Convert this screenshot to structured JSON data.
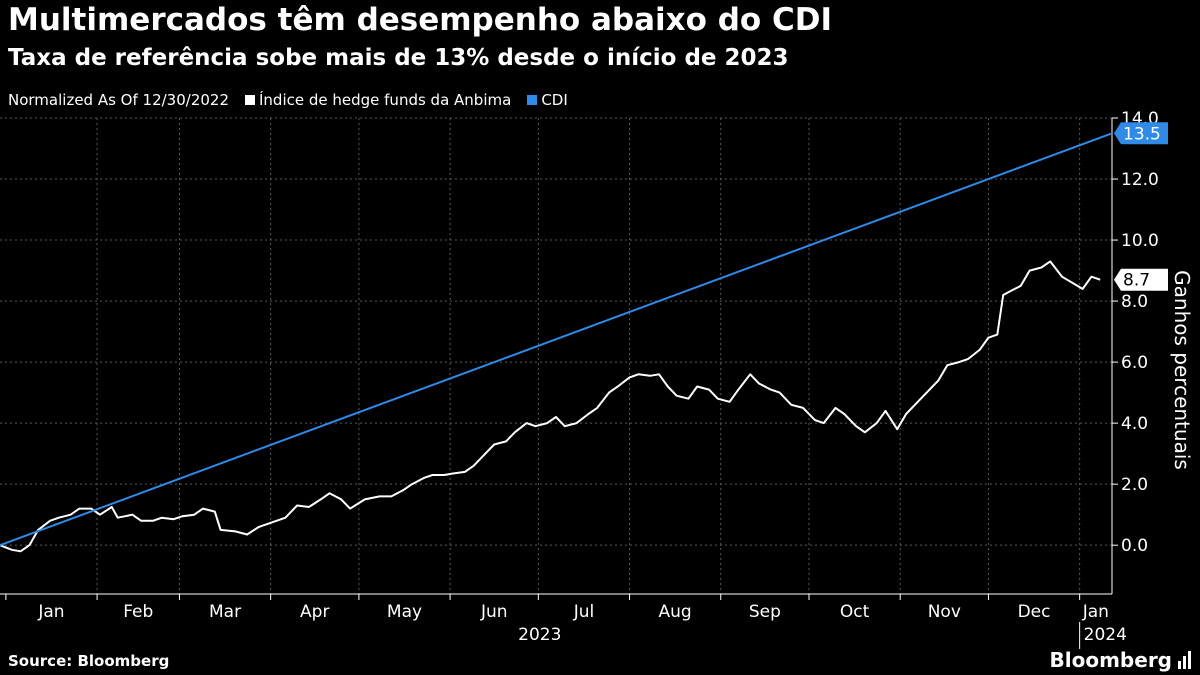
{
  "header": {
    "title": "Multimercados têm desempenho abaixo do CDI",
    "subtitle": "Taxa de referência sobe mais de 13% desde o início de 2023"
  },
  "legend": {
    "note": "Normalized As Of 12/30/2022",
    "items": [
      {
        "label": "Índice de hedge funds da Anbima",
        "color": "#ffffff"
      },
      {
        "label": "CDI",
        "color": "#2f8ae8"
      }
    ]
  },
  "footer": {
    "source": "Source: Bloomberg",
    "brand": "Bloomberg"
  },
  "chart_data": {
    "type": "line",
    "ylabel": "Ganhos percentuais",
    "ylim": [
      -1.6,
      14.0
    ],
    "yticks": [
      "0.0",
      "2.0",
      "4.0",
      "6.0",
      "8.0",
      "10.0",
      "12.0",
      "14.0"
    ],
    "grid": true,
    "x_start": "2022-12-30",
    "x_end": "2024-01-12",
    "x_month_labels": [
      "Jan",
      "Feb",
      "Mar",
      "Apr",
      "May",
      "Jun",
      "Jul",
      "Aug",
      "Sep",
      "Oct",
      "Nov",
      "Dec",
      "Jan"
    ],
    "year_labels": [
      "2023",
      "2024"
    ],
    "series": [
      {
        "name": "Índice de hedge funds da Anbima",
        "color": "#ffffff",
        "last_label": "8.7",
        "points": [
          [
            "2022-12-30",
            0.0
          ],
          [
            "2023-01-03",
            -0.15
          ],
          [
            "2023-01-06",
            -0.2
          ],
          [
            "2023-01-09",
            0.0
          ],
          [
            "2023-01-12",
            0.5
          ],
          [
            "2023-01-16",
            0.8
          ],
          [
            "2023-01-19",
            0.9
          ],
          [
            "2023-01-23",
            1.0
          ],
          [
            "2023-01-26",
            1.2
          ],
          [
            "2023-01-30",
            1.2
          ],
          [
            "2023-02-02",
            1.0
          ],
          [
            "2023-02-06",
            1.25
          ],
          [
            "2023-02-08",
            0.9
          ],
          [
            "2023-02-13",
            1.0
          ],
          [
            "2023-02-16",
            0.8
          ],
          [
            "2023-02-20",
            0.8
          ],
          [
            "2023-02-23",
            0.9
          ],
          [
            "2023-02-27",
            0.85
          ],
          [
            "2023-03-02",
            0.95
          ],
          [
            "2023-03-06",
            1.0
          ],
          [
            "2023-03-09",
            1.2
          ],
          [
            "2023-03-13",
            1.1
          ],
          [
            "2023-03-15",
            0.5
          ],
          [
            "2023-03-20",
            0.45
          ],
          [
            "2023-03-24",
            0.35
          ],
          [
            "2023-03-28",
            0.6
          ],
          [
            "2023-04-03",
            0.8
          ],
          [
            "2023-04-06",
            0.9
          ],
          [
            "2023-04-10",
            1.3
          ],
          [
            "2023-04-14",
            1.25
          ],
          [
            "2023-04-18",
            1.5
          ],
          [
            "2023-04-21",
            1.7
          ],
          [
            "2023-04-25",
            1.5
          ],
          [
            "2023-04-28",
            1.2
          ],
          [
            "2023-05-03",
            1.5
          ],
          [
            "2023-05-08",
            1.6
          ],
          [
            "2023-05-12",
            1.6
          ],
          [
            "2023-05-16",
            1.8
          ],
          [
            "2023-05-19",
            2.0
          ],
          [
            "2023-05-23",
            2.2
          ],
          [
            "2023-05-26",
            2.3
          ],
          [
            "2023-05-30",
            2.3
          ],
          [
            "2023-06-02",
            2.35
          ],
          [
            "2023-06-06",
            2.4
          ],
          [
            "2023-06-09",
            2.6
          ],
          [
            "2023-06-13",
            3.0
          ],
          [
            "2023-06-16",
            3.3
          ],
          [
            "2023-06-20",
            3.4
          ],
          [
            "2023-06-23",
            3.7
          ],
          [
            "2023-06-27",
            4.0
          ],
          [
            "2023-06-30",
            3.9
          ],
          [
            "2023-07-04",
            4.0
          ],
          [
            "2023-07-07",
            4.2
          ],
          [
            "2023-07-10",
            3.9
          ],
          [
            "2023-07-14",
            4.0
          ],
          [
            "2023-07-18",
            4.3
          ],
          [
            "2023-07-21",
            4.5
          ],
          [
            "2023-07-25",
            5.0
          ],
          [
            "2023-07-28",
            5.2
          ],
          [
            "2023-08-01",
            5.5
          ],
          [
            "2023-08-04",
            5.6
          ],
          [
            "2023-08-08",
            5.55
          ],
          [
            "2023-08-11",
            5.6
          ],
          [
            "2023-08-14",
            5.2
          ],
          [
            "2023-08-17",
            4.9
          ],
          [
            "2023-08-21",
            4.8
          ],
          [
            "2023-08-24",
            5.2
          ],
          [
            "2023-08-28",
            5.1
          ],
          [
            "2023-08-31",
            4.8
          ],
          [
            "2023-09-04",
            4.7
          ],
          [
            "2023-09-07",
            5.1
          ],
          [
            "2023-09-11",
            5.6
          ],
          [
            "2023-09-14",
            5.3
          ],
          [
            "2023-09-18",
            5.1
          ],
          [
            "2023-09-21",
            5.0
          ],
          [
            "2023-09-25",
            4.6
          ],
          [
            "2023-09-29",
            4.5
          ],
          [
            "2023-10-03",
            4.1
          ],
          [
            "2023-10-06",
            4.0
          ],
          [
            "2023-10-10",
            4.5
          ],
          [
            "2023-10-13",
            4.3
          ],
          [
            "2023-10-17",
            3.9
          ],
          [
            "2023-10-20",
            3.7
          ],
          [
            "2023-10-24",
            4.0
          ],
          [
            "2023-10-27",
            4.4
          ],
          [
            "2023-10-31",
            3.8
          ],
          [
            "2023-11-03",
            4.3
          ],
          [
            "2023-11-07",
            4.7
          ],
          [
            "2023-11-10",
            5.0
          ],
          [
            "2023-11-14",
            5.4
          ],
          [
            "2023-11-17",
            5.9
          ],
          [
            "2023-11-21",
            6.0
          ],
          [
            "2023-11-24",
            6.1
          ],
          [
            "2023-11-28",
            6.4
          ],
          [
            "2023-12-01",
            6.8
          ],
          [
            "2023-12-04",
            6.9
          ],
          [
            "2023-12-06",
            8.2
          ],
          [
            "2023-12-08",
            8.3
          ],
          [
            "2023-12-12",
            8.5
          ],
          [
            "2023-12-15",
            9.0
          ],
          [
            "2023-12-19",
            9.1
          ],
          [
            "2023-12-22",
            9.3
          ],
          [
            "2023-12-26",
            8.8
          ],
          [
            "2024-01-02",
            8.4
          ],
          [
            "2024-01-05",
            8.8
          ],
          [
            "2024-01-08",
            8.7
          ]
        ]
      },
      {
        "name": "CDI",
        "color": "#2f8ae8",
        "last_label": "13.5",
        "points": [
          [
            "2022-12-30",
            0.0
          ],
          [
            "2024-01-12",
            13.5
          ]
        ]
      }
    ]
  }
}
